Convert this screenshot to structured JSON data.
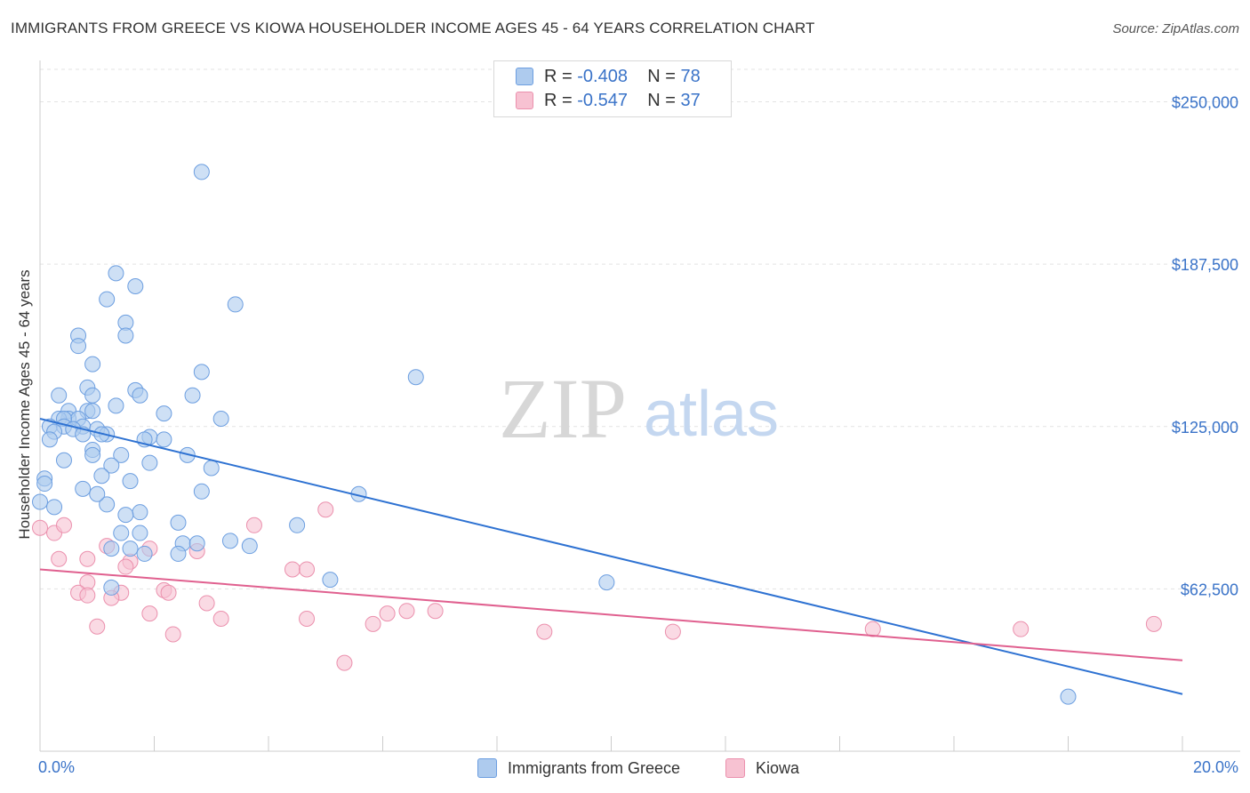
{
  "title": "IMMIGRANTS FROM GREECE VS KIOWA HOUSEHOLDER INCOME AGES 45 - 64 YEARS CORRELATION CHART",
  "source": "Source: ZipAtlas.com",
  "watermark": {
    "zip": "ZIP",
    "atlas": "atlas"
  },
  "legend": {
    "rows": [
      {
        "r_label": "R =",
        "r_value": "-0.408",
        "n_label": "N =",
        "n_value": "78"
      },
      {
        "r_label": "R =",
        "r_value": "-0.547",
        "n_label": "N =",
        "n_value": "37"
      }
    ]
  },
  "bottom_legend": {
    "series1": "Immigrants from Greece",
    "series2": "Kiowa"
  },
  "colors": {
    "blue_fill": "#aecbee",
    "blue_stroke": "#6c9ee0",
    "blue_line": "#2e72d2",
    "pink_fill": "#f7c2d2",
    "pink_stroke": "#eb90ad",
    "pink_line": "#e0608f",
    "tick_label": "#3a73c8",
    "grid": "#e3e3e3"
  },
  "chart_data": {
    "type": "scatter",
    "title": "IMMIGRANTS FROM GREECE VS KIOWA HOUSEHOLDER INCOME AGES 45 - 64 YEARS CORRELATION CHART",
    "xlabel": "",
    "ylabel": "Householder Income Ages 45 - 64 years",
    "xlim": [
      0,
      20
    ],
    "ylim": [
      0,
      262500
    ],
    "x_tick_labels": [
      "0.0%",
      "20.0%"
    ],
    "y_ticks": [
      62500,
      125000,
      187500,
      250000
    ],
    "y_tick_labels": [
      "$62,500",
      "$125,000",
      "$187,500",
      "$250,000"
    ],
    "series": [
      {
        "name": "Immigrants from Greece",
        "points": [
          [
            2.83,
            223000
          ],
          [
            1.33,
            184000
          ],
          [
            1.67,
            179000
          ],
          [
            1.17,
            174000
          ],
          [
            3.42,
            172000
          ],
          [
            1.5,
            165000
          ],
          [
            0.67,
            160000
          ],
          [
            1.5,
            160000
          ],
          [
            0.67,
            156000
          ],
          [
            0.92,
            149000
          ],
          [
            2.83,
            146000
          ],
          [
            6.58,
            144000
          ],
          [
            0.83,
            140000
          ],
          [
            1.67,
            139000
          ],
          [
            0.33,
            137000
          ],
          [
            0.92,
            137000
          ],
          [
            1.75,
            137000
          ],
          [
            2.67,
            137000
          ],
          [
            1.33,
            133000
          ],
          [
            0.5,
            131000
          ],
          [
            0.83,
            131000
          ],
          [
            0.92,
            131000
          ],
          [
            2.17,
            130000
          ],
          [
            0.5,
            128000
          ],
          [
            0.33,
            128000
          ],
          [
            0.67,
            128000
          ],
          [
            0.42,
            128000
          ],
          [
            3.17,
            128000
          ],
          [
            0.17,
            125000
          ],
          [
            0.75,
            125000
          ],
          [
            0.42,
            125000
          ],
          [
            1.0,
            124000
          ],
          [
            0.58,
            124000
          ],
          [
            0.25,
            123000
          ],
          [
            0.75,
            122000
          ],
          [
            1.17,
            122000
          ],
          [
            1.08,
            122000
          ],
          [
            0.17,
            120000
          ],
          [
            1.92,
            121000
          ],
          [
            1.83,
            120000
          ],
          [
            2.17,
            120000
          ],
          [
            0.92,
            116000
          ],
          [
            1.42,
            114000
          ],
          [
            2.58,
            114000
          ],
          [
            0.92,
            114000
          ],
          [
            0.42,
            112000
          ],
          [
            1.92,
            111000
          ],
          [
            1.25,
            110000
          ],
          [
            3.0,
            109000
          ],
          [
            1.08,
            106000
          ],
          [
            0.08,
            105000
          ],
          [
            0.08,
            103000
          ],
          [
            1.58,
            104000
          ],
          [
            0.75,
            101000
          ],
          [
            2.83,
            100000
          ],
          [
            5.58,
            99000
          ],
          [
            0.0,
            96000
          ],
          [
            0.25,
            94000
          ],
          [
            1.17,
            95000
          ],
          [
            1.75,
            92000
          ],
          [
            2.42,
            88000
          ],
          [
            4.5,
            87000
          ],
          [
            1.42,
            84000
          ],
          [
            1.75,
            84000
          ],
          [
            3.33,
            81000
          ],
          [
            2.5,
            80000
          ],
          [
            3.67,
            79000
          ],
          [
            1.25,
            78000
          ],
          [
            1.58,
            78000
          ],
          [
            2.75,
            80000
          ],
          [
            2.42,
            76000
          ],
          [
            1.83,
            76000
          ],
          [
            5.08,
            66000
          ],
          [
            9.92,
            65000
          ],
          [
            1.25,
            63000
          ],
          [
            18.0,
            21000
          ],
          [
            1.5,
            91000
          ],
          [
            1.0,
            99000
          ]
        ],
        "trend": {
          "x": [
            0,
            20
          ],
          "y": [
            128000,
            22000
          ]
        }
      },
      {
        "name": "Kiowa",
        "points": [
          [
            0.0,
            86000
          ],
          [
            0.25,
            84000
          ],
          [
            0.42,
            87000
          ],
          [
            5.0,
            93000
          ],
          [
            3.75,
            87000
          ],
          [
            1.17,
            79000
          ],
          [
            1.92,
            78000
          ],
          [
            2.75,
            77000
          ],
          [
            0.33,
            74000
          ],
          [
            0.83,
            74000
          ],
          [
            1.58,
            73000
          ],
          [
            1.5,
            71000
          ],
          [
            4.42,
            70000
          ],
          [
            4.67,
            70000
          ],
          [
            0.83,
            65000
          ],
          [
            0.67,
            61000
          ],
          [
            1.42,
            61000
          ],
          [
            2.17,
            62000
          ],
          [
            2.25,
            61000
          ],
          [
            0.83,
            60000
          ],
          [
            1.25,
            59000
          ],
          [
            2.92,
            57000
          ],
          [
            1.92,
            53000
          ],
          [
            6.42,
            54000
          ],
          [
            6.92,
            54000
          ],
          [
            6.08,
            53000
          ],
          [
            3.17,
            51000
          ],
          [
            4.67,
            51000
          ],
          [
            5.83,
            49000
          ],
          [
            1.0,
            48000
          ],
          [
            8.83,
            46000
          ],
          [
            11.08,
            46000
          ],
          [
            14.58,
            47000
          ],
          [
            17.17,
            47000
          ],
          [
            19.5,
            49000
          ],
          [
            2.33,
            45000
          ],
          [
            5.33,
            34000
          ]
        ],
        "trend": {
          "x": [
            0,
            20
          ],
          "y": [
            70000,
            35000
          ]
        }
      }
    ]
  }
}
